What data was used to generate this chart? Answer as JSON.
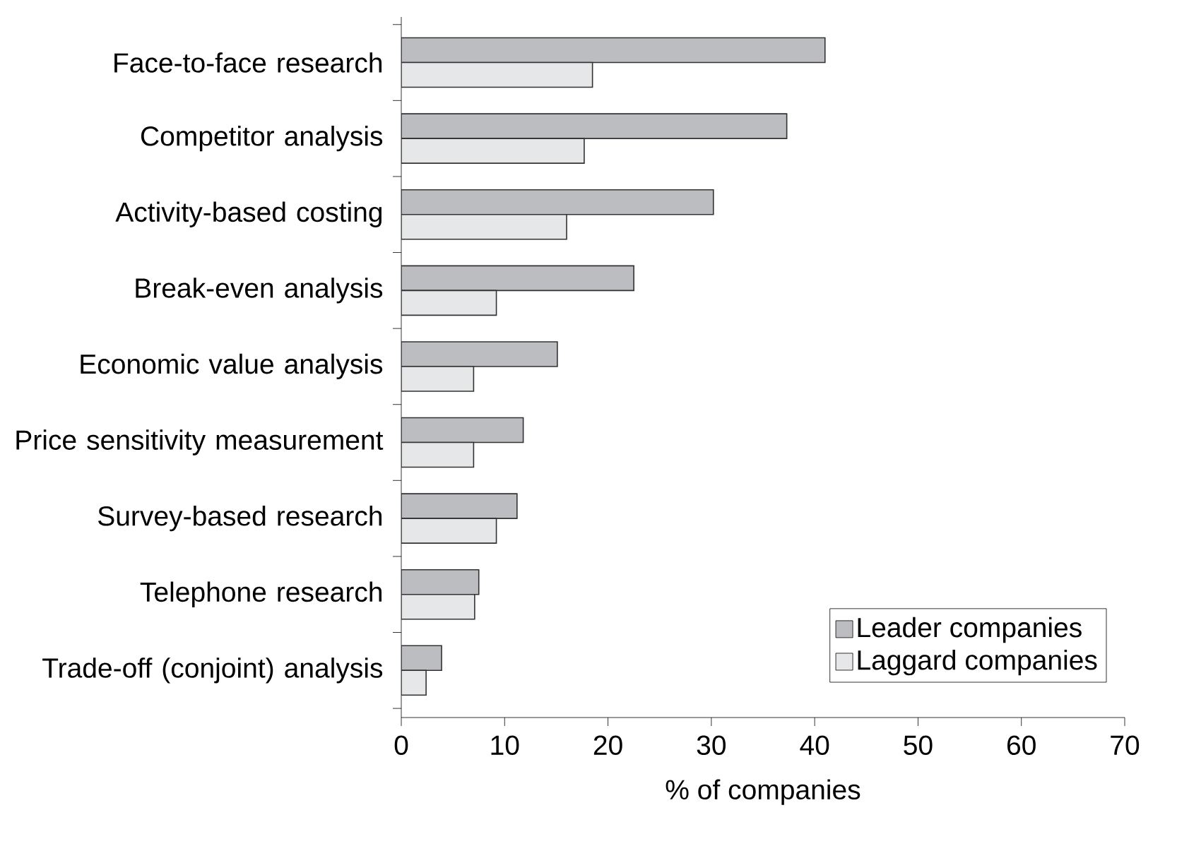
{
  "chart_data": {
    "type": "bar",
    "orientation": "horizontal",
    "xlabel": "% of companies",
    "categories": [
      "Face-to-face research",
      "Competitor analysis",
      "Activity-based costing",
      "Break-even analysis",
      "Economic value analysis",
      "Price sensitivity measurement",
      "Survey-based research",
      "Telephone research",
      "Trade-off (conjoint) analysis"
    ],
    "series": [
      {
        "name": "Leader companies",
        "color": "#bcbdc0",
        "values": [
          41.0,
          37.3,
          30.2,
          22.5,
          15.1,
          11.8,
          11.2,
          7.5,
          3.9
        ]
      },
      {
        "name": "Laggard companies",
        "color": "#e6e7e8",
        "values": [
          18.5,
          17.7,
          16.0,
          9.2,
          7.0,
          7.0,
          9.2,
          7.1,
          2.4
        ]
      }
    ],
    "xlim": [
      0,
      70
    ],
    "xticks": [
      0,
      10,
      20,
      30,
      40,
      50,
      60,
      70
    ],
    "grid": false,
    "legend": "bottom right"
  }
}
